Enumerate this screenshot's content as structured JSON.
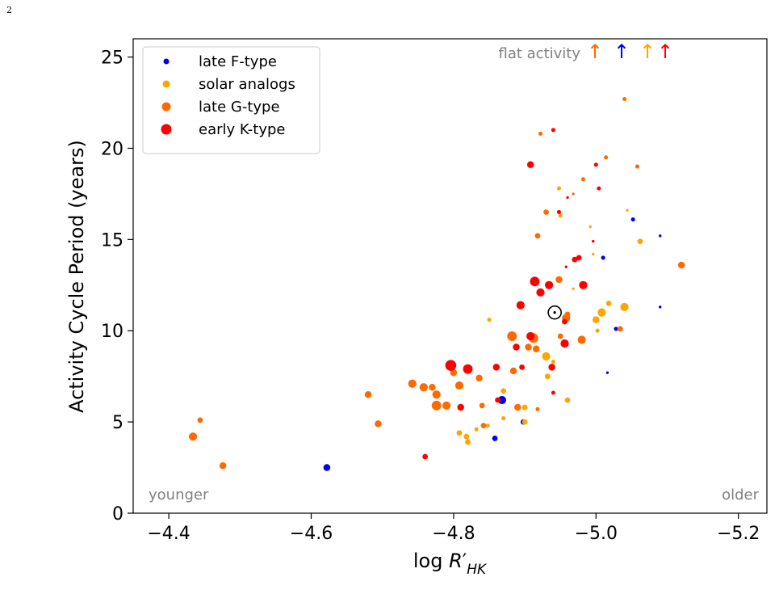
{
  "page_number": "2",
  "colors": {
    "late_f": "#0000ee",
    "solar": "#ffa500",
    "late_g": "#ff6a00",
    "early_k": "#ff0000",
    "gray": "#808080"
  },
  "chart_data": {
    "type": "scatter",
    "xlabel": "log R′HK",
    "ylabel": "Activity Cycle Period (years)",
    "xlim": [
      -4.35,
      -5.24
    ],
    "ylim": [
      0,
      26
    ],
    "x_inverted": true,
    "x_ticks": [
      -4.4,
      -4.6,
      -4.8,
      -5.0,
      -5.2
    ],
    "x_tick_labels": [
      "−4.4",
      "−4.6",
      "−4.8",
      "−5.0",
      "−5.2"
    ],
    "y_ticks": [
      0,
      5,
      10,
      15,
      20,
      25
    ],
    "y_tick_labels": [
      "0",
      "5",
      "10",
      "15",
      "20",
      "25"
    ],
    "grid": false,
    "legend_position": "top-left",
    "annotations": {
      "flat_activity": "flat activity",
      "younger": "younger",
      "older": "older",
      "arrow_glyph": "↑"
    },
    "flat_arrows": [
      {
        "series": "late G-type"
      },
      {
        "series": "late F-type"
      },
      {
        "series": "solar analogs"
      },
      {
        "series": "early K-type"
      }
    ],
    "sun_marker": {
      "x": -4.942,
      "y": 11.0
    },
    "series": [
      {
        "name": "late F-type",
        "color": "#0000ee",
        "points": [
          [
            -4.622,
            2.5,
            5
          ],
          [
            -4.858,
            4.1,
            4
          ],
          [
            -4.868,
            6.2,
            6
          ],
          [
            -4.898,
            5.0,
            4
          ],
          [
            -5.01,
            14.0,
            3
          ],
          [
            -5.028,
            10.1,
            3
          ],
          [
            -5.016,
            7.7,
            2
          ],
          [
            -5.052,
            16.1,
            3
          ],
          [
            -5.09,
            15.2,
            2
          ],
          [
            -5.09,
            11.3,
            2
          ]
        ]
      },
      {
        "name": "solar analogs",
        "color": "#ffa500",
        "points": [
          [
            -4.808,
            4.4,
            4
          ],
          [
            -4.818,
            4.2,
            4
          ],
          [
            -4.82,
            3.9,
            4
          ],
          [
            -4.832,
            4.6,
            3
          ],
          [
            -4.848,
            4.8,
            3
          ],
          [
            -4.85,
            10.6,
            3
          ],
          [
            -4.87,
            6.7,
            4
          ],
          [
            -4.87,
            5.2,
            3
          ],
          [
            -4.9,
            5.0,
            4
          ],
          [
            -4.9,
            5.8,
            4
          ],
          [
            -4.908,
            9.7,
            5
          ],
          [
            -4.93,
            8.6,
            6
          ],
          [
            -4.932,
            7.5,
            4
          ],
          [
            -4.94,
            8.3,
            3
          ],
          [
            -4.948,
            17.8,
            3
          ],
          [
            -4.95,
            16.3,
            3
          ],
          [
            -4.96,
            6.2,
            4
          ],
          [
            -4.992,
            15.7,
            2
          ],
          [
            -4.996,
            14.2,
            2
          ],
          [
            -5.002,
            10.0,
            3
          ],
          [
            -5.0,
            10.6,
            5
          ],
          [
            -5.008,
            11.0,
            6
          ],
          [
            -5.018,
            11.5,
            4
          ],
          [
            -5.04,
            11.3,
            6
          ],
          [
            -5.044,
            16.6,
            2
          ],
          [
            -5.062,
            14.9,
            4
          ],
          [
            -4.968,
            12.3,
            2
          ]
        ]
      },
      {
        "name": "late G-type",
        "color": "#ff6a00",
        "points": [
          [
            -4.434,
            4.2,
            6
          ],
          [
            -4.444,
            5.1,
            4
          ],
          [
            -4.476,
            2.6,
            5
          ],
          [
            -4.68,
            6.5,
            5
          ],
          [
            -4.694,
            4.9,
            5
          ],
          [
            -4.742,
            7.1,
            6
          ],
          [
            -4.758,
            6.9,
            6
          ],
          [
            -4.77,
            6.9,
            5
          ],
          [
            -4.776,
            6.5,
            6
          ],
          [
            -4.776,
            5.9,
            7
          ],
          [
            -4.79,
            5.9,
            6
          ],
          [
            -4.8,
            7.7,
            5
          ],
          [
            -4.808,
            7.0,
            6
          ],
          [
            -4.836,
            7.4,
            5
          ],
          [
            -4.84,
            5.9,
            4
          ],
          [
            -4.842,
            4.8,
            4
          ],
          [
            -4.882,
            9.7,
            7
          ],
          [
            -4.884,
            7.8,
            5
          ],
          [
            -4.89,
            5.8,
            5
          ],
          [
            -4.905,
            9.1,
            5
          ],
          [
            -4.912,
            9.6,
            7
          ],
          [
            -4.916,
            9.0,
            5
          ],
          [
            -4.918,
            15.2,
            4
          ],
          [
            -4.922,
            20.8,
            3
          ],
          [
            -4.93,
            16.5,
            4
          ],
          [
            -4.948,
            12.8,
            5
          ],
          [
            -4.95,
            9.7,
            4
          ],
          [
            -4.958,
            10.7,
            6
          ],
          [
            -4.98,
            9.5,
            6
          ],
          [
            -4.982,
            18.3,
            3
          ],
          [
            -4.968,
            17.5,
            2
          ],
          [
            -5.014,
            19.5,
            3
          ],
          [
            -5.034,
            10.1,
            4
          ],
          [
            -5.04,
            22.7,
            3
          ],
          [
            -5.058,
            19.0,
            3
          ],
          [
            -5.12,
            13.6,
            5
          ],
          [
            -4.96,
            10.9,
            4
          ],
          [
            -4.918,
            5.7,
            3
          ]
        ]
      },
      {
        "name": "early K-type",
        "color": "#ff0000",
        "points": [
          [
            -4.76,
            3.1,
            4
          ],
          [
            -4.796,
            8.1,
            8
          ],
          [
            -4.82,
            7.9,
            7
          ],
          [
            -4.81,
            5.8,
            5
          ],
          [
            -4.86,
            8.0,
            5
          ],
          [
            -4.862,
            6.2,
            4
          ],
          [
            -4.888,
            9.1,
            5
          ],
          [
            -4.894,
            11.4,
            6
          ],
          [
            -4.896,
            8.0,
            4
          ],
          [
            -4.908,
            9.7,
            6
          ],
          [
            -4.914,
            12.7,
            7
          ],
          [
            -4.922,
            12.1,
            6
          ],
          [
            -4.934,
            12.5,
            6
          ],
          [
            -4.938,
            8.0,
            5
          ],
          [
            -4.94,
            21.0,
            3
          ],
          [
            -4.94,
            6.6,
            3
          ],
          [
            -4.956,
            9.3,
            6
          ],
          [
            -4.956,
            10.5,
            4
          ],
          [
            -4.976,
            14.0,
            4
          ],
          [
            -4.982,
            12.5,
            6
          ],
          [
            -4.996,
            14.9,
            2
          ],
          [
            -5.0,
            19.1,
            3
          ],
          [
            -5.004,
            17.8,
            3
          ],
          [
            -4.958,
            13.5,
            2
          ],
          [
            -4.908,
            19.1,
            5
          ],
          [
            -4.948,
            16.5,
            3
          ],
          [
            -4.97,
            13.9,
            4
          ],
          [
            -4.96,
            17.3,
            2
          ]
        ]
      }
    ]
  }
}
